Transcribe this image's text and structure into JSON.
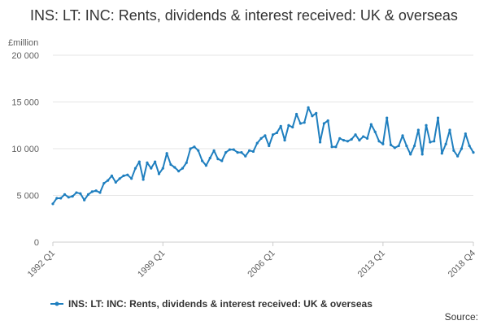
{
  "chart_data": {
    "type": "line",
    "title": "INS: LT: INC: Rents, dividends & interest received: UK & overseas",
    "ylabel": "£million",
    "ylim": [
      0,
      20000
    ],
    "yticks": [
      0,
      5000,
      10000,
      15000,
      20000
    ],
    "ytick_labels": [
      "0",
      "5 000",
      "10 000",
      "15 000",
      "20 000"
    ],
    "xtick_labels": [
      "1992 Q1",
      "1999 Q1",
      "2006 Q1",
      "2013 Q1",
      "2018 Q4"
    ],
    "grid": true,
    "legend_position": "bottom",
    "source_label": "Source:",
    "series": [
      {
        "name": "INS: LT: INC: Rents, dividends & interest received: UK & overseas",
        "color": "#1f7fbf",
        "x": [
          "1992 Q1",
          "1992 Q2",
          "1992 Q3",
          "1992 Q4",
          "1993 Q1",
          "1993 Q2",
          "1993 Q3",
          "1993 Q4",
          "1994 Q1",
          "1994 Q2",
          "1994 Q3",
          "1994 Q4",
          "1995 Q1",
          "1995 Q2",
          "1995 Q3",
          "1995 Q4",
          "1996 Q1",
          "1996 Q2",
          "1996 Q3",
          "1996 Q4",
          "1997 Q1",
          "1997 Q2",
          "1997 Q3",
          "1997 Q4",
          "1998 Q1",
          "1998 Q2",
          "1998 Q3",
          "1998 Q4",
          "1999 Q1",
          "1999 Q2",
          "1999 Q3",
          "1999 Q4",
          "2000 Q1",
          "2000 Q2",
          "2000 Q3",
          "2000 Q4",
          "2001 Q1",
          "2001 Q2",
          "2001 Q3",
          "2001 Q4",
          "2002 Q1",
          "2002 Q2",
          "2002 Q3",
          "2002 Q4",
          "2003 Q1",
          "2003 Q2",
          "2003 Q3",
          "2003 Q4",
          "2004 Q1",
          "2004 Q2",
          "2004 Q3",
          "2004 Q4",
          "2005 Q1",
          "2005 Q2",
          "2005 Q3",
          "2005 Q4",
          "2006 Q1",
          "2006 Q2",
          "2006 Q3",
          "2006 Q4",
          "2007 Q1",
          "2007 Q2",
          "2007 Q3",
          "2007 Q4",
          "2008 Q1",
          "2008 Q2",
          "2008 Q3",
          "2008 Q4",
          "2009 Q1",
          "2009 Q2",
          "2009 Q3",
          "2009 Q4",
          "2010 Q1",
          "2010 Q2",
          "2010 Q3",
          "2010 Q4",
          "2011 Q1",
          "2011 Q2",
          "2011 Q3",
          "2011 Q4",
          "2012 Q1",
          "2012 Q2",
          "2012 Q3",
          "2012 Q4",
          "2013 Q1",
          "2013 Q2",
          "2013 Q3",
          "2013 Q4",
          "2014 Q1",
          "2014 Q2",
          "2014 Q3",
          "2014 Q4",
          "2015 Q1",
          "2015 Q2",
          "2015 Q3",
          "2015 Q4",
          "2016 Q1",
          "2016 Q2",
          "2016 Q3",
          "2016 Q4",
          "2017 Q1",
          "2017 Q2",
          "2017 Q3",
          "2017 Q4",
          "2018 Q1",
          "2018 Q2",
          "2018 Q3",
          "2018 Q4"
        ],
        "values": [
          4100,
          4700,
          4700,
          5100,
          4800,
          4900,
          5300,
          5200,
          4500,
          5100,
          5400,
          5500,
          5300,
          6300,
          6600,
          7100,
          6400,
          6800,
          7100,
          7200,
          6800,
          7900,
          8600,
          6700,
          8500,
          7900,
          8600,
          7300,
          7900,
          9500,
          8300,
          8000,
          7600,
          7900,
          8500,
          10000,
          10200,
          9800,
          8700,
          8200,
          9000,
          9800,
          8900,
          8700,
          9600,
          9900,
          9900,
          9600,
          9600,
          9200,
          9800,
          9700,
          10600,
          11100,
          11400,
          10300,
          11500,
          11700,
          12400,
          10900,
          12500,
          12300,
          13700,
          12700,
          12800,
          14400,
          13500,
          13800,
          10700,
          12700,
          13000,
          10200,
          10200,
          11100,
          10900,
          10800,
          11000,
          11500,
          10900,
          11300,
          11100,
          12600,
          11800,
          10800,
          10500,
          13300,
          10400,
          10100,
          10300,
          11400,
          10300,
          9400,
          10300,
          12000,
          9400,
          12500,
          10700,
          10800,
          13300,
          9500,
          10500,
          12000,
          9800,
          9200,
          10000,
          11600,
          10300,
          9600
        ]
      }
    ]
  }
}
